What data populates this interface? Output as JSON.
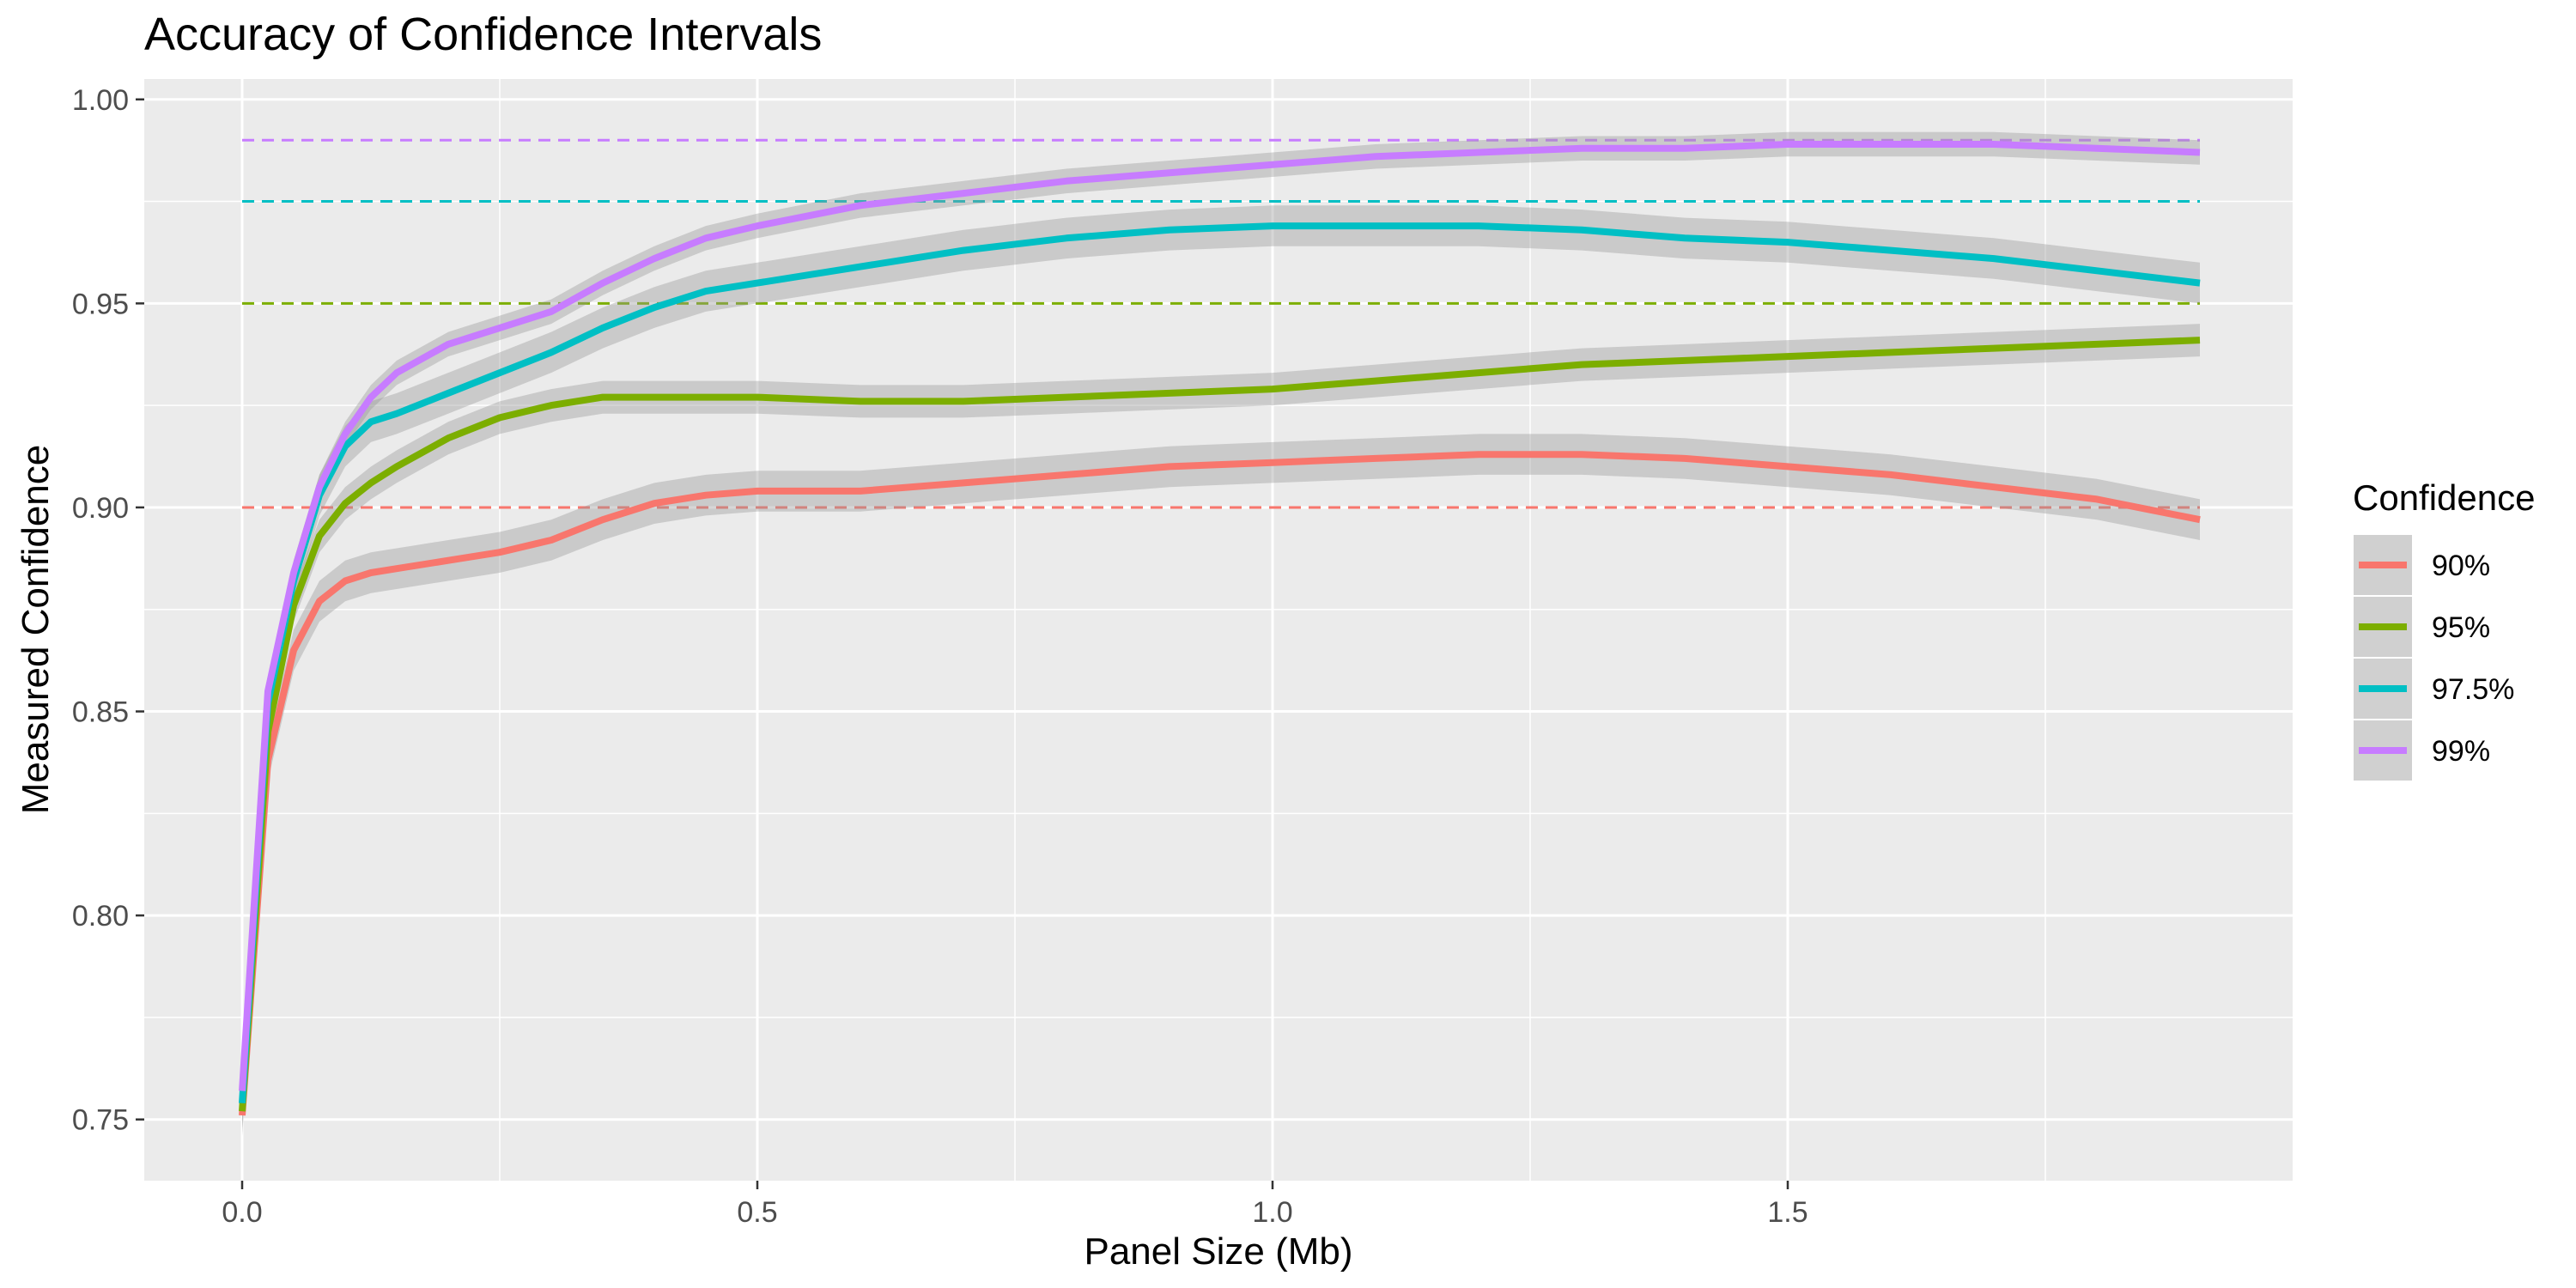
{
  "chart_data": {
    "type": "line",
    "title": "Accuracy of Confidence Intervals",
    "xlabel": "Panel Size (Mb)",
    "ylabel": "Measured Confidence",
    "xlim": [
      -0.095,
      1.99
    ],
    "ylim": [
      0.735,
      1.005
    ],
    "x_ticks": [
      0.0,
      0.5,
      1.0,
      1.5
    ],
    "x_tick_labels": [
      "0.0",
      "0.5",
      "1.0",
      "1.5"
    ],
    "y_ticks": [
      0.75,
      0.8,
      0.85,
      0.9,
      0.95,
      1.0
    ],
    "y_tick_labels": [
      "0.75",
      "0.80",
      "0.85",
      "0.90",
      "0.95",
      "1.00"
    ],
    "grid": true,
    "legend": {
      "title": "Confidence",
      "position": "right"
    },
    "series": [
      {
        "name": "90%",
        "color": "#F8766D",
        "target": 0.9,
        "x": [
          0.0,
          0.025,
          0.05,
          0.075,
          0.1,
          0.125,
          0.15,
          0.2,
          0.25,
          0.3,
          0.35,
          0.4,
          0.45,
          0.5,
          0.6,
          0.7,
          0.8,
          0.9,
          1.0,
          1.1,
          1.2,
          1.3,
          1.4,
          1.5,
          1.6,
          1.7,
          1.8,
          1.9
        ],
        "y": [
          0.751,
          0.838,
          0.865,
          0.877,
          0.882,
          0.884,
          0.885,
          0.887,
          0.889,
          0.892,
          0.897,
          0.901,
          0.903,
          0.904,
          0.904,
          0.906,
          0.908,
          0.91,
          0.911,
          0.912,
          0.913,
          0.913,
          0.912,
          0.91,
          0.908,
          0.905,
          0.902,
          0.897
        ],
        "band": 0.005
      },
      {
        "name": "95%",
        "color": "#7CAE00",
        "target": 0.95,
        "x": [
          0.0,
          0.025,
          0.05,
          0.075,
          0.1,
          0.125,
          0.15,
          0.2,
          0.25,
          0.3,
          0.35,
          0.4,
          0.45,
          0.5,
          0.6,
          0.7,
          0.8,
          0.9,
          1.0,
          1.1,
          1.2,
          1.3,
          1.4,
          1.5,
          1.6,
          1.7,
          1.8,
          1.9
        ],
        "y": [
          0.752,
          0.845,
          0.876,
          0.893,
          0.901,
          0.906,
          0.91,
          0.917,
          0.922,
          0.925,
          0.927,
          0.927,
          0.927,
          0.927,
          0.926,
          0.926,
          0.927,
          0.928,
          0.929,
          0.931,
          0.933,
          0.935,
          0.936,
          0.937,
          0.938,
          0.939,
          0.94,
          0.941
        ],
        "band": 0.004
      },
      {
        "name": "97.5%",
        "color": "#00BFC4",
        "target": 0.975,
        "x": [
          0.0,
          0.025,
          0.05,
          0.075,
          0.1,
          0.125,
          0.15,
          0.2,
          0.25,
          0.3,
          0.35,
          0.4,
          0.45,
          0.5,
          0.6,
          0.7,
          0.8,
          0.9,
          1.0,
          1.1,
          1.2,
          1.3,
          1.4,
          1.5,
          1.6,
          1.7,
          1.8,
          1.9
        ],
        "y": [
          0.754,
          0.852,
          0.882,
          0.903,
          0.915,
          0.921,
          0.923,
          0.928,
          0.933,
          0.938,
          0.944,
          0.949,
          0.953,
          0.955,
          0.959,
          0.963,
          0.966,
          0.968,
          0.969,
          0.969,
          0.969,
          0.968,
          0.966,
          0.965,
          0.963,
          0.961,
          0.958,
          0.955
        ],
        "band": 0.005
      },
      {
        "name": "99%",
        "color": "#C77CFF",
        "target": 0.99,
        "x": [
          0.0,
          0.025,
          0.05,
          0.075,
          0.1,
          0.125,
          0.15,
          0.2,
          0.25,
          0.3,
          0.35,
          0.4,
          0.45,
          0.5,
          0.6,
          0.7,
          0.8,
          0.9,
          1.0,
          1.1,
          1.2,
          1.3,
          1.4,
          1.5,
          1.6,
          1.7,
          1.8,
          1.9
        ],
        "y": [
          0.757,
          0.855,
          0.884,
          0.905,
          0.918,
          0.927,
          0.933,
          0.94,
          0.944,
          0.948,
          0.955,
          0.961,
          0.966,
          0.969,
          0.974,
          0.977,
          0.98,
          0.982,
          0.984,
          0.986,
          0.987,
          0.988,
          0.988,
          0.989,
          0.989,
          0.989,
          0.988,
          0.987
        ],
        "band": 0.003
      }
    ]
  }
}
